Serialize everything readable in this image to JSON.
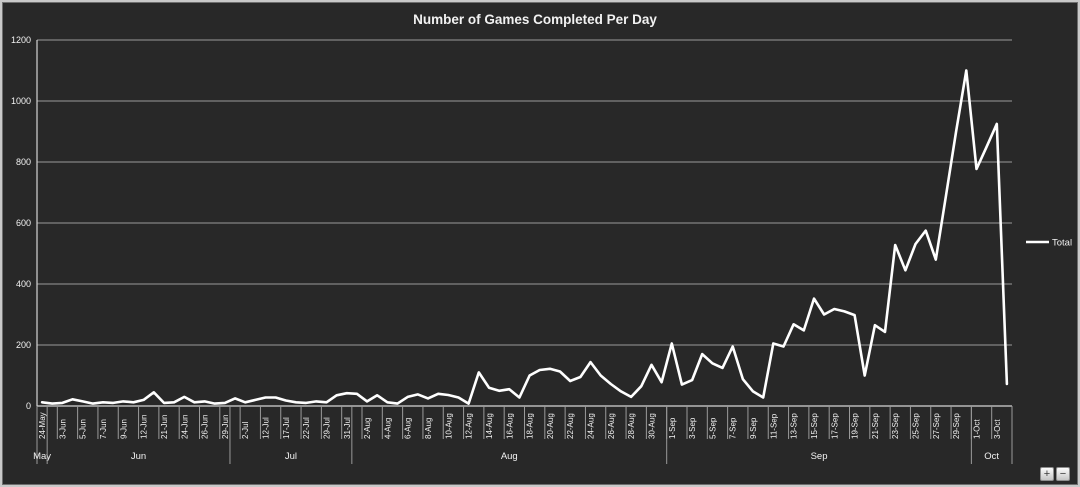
{
  "window": {
    "background_color": "#282828",
    "frame_border_color": "#c9c9c9"
  },
  "title": "Number of Games Completed Per Day",
  "legend": {
    "label": "Total",
    "marker": "white-line"
  },
  "controls": {
    "zoom_in_label": "+",
    "zoom_out_label": "−"
  },
  "colors": {
    "background": "#282828",
    "gridline": "#9a9a9a",
    "axis": "#d4d4d4",
    "series_line": "#ffffff",
    "text": "#f2f2f2"
  },
  "chart_data": {
    "type": "line",
    "title": "Number of Games Completed Per Day",
    "xlabel": "",
    "ylabel": "",
    "ylim": [
      0,
      1200
    ],
    "y_ticks": [
      0,
      200,
      400,
      600,
      800,
      1000,
      1200
    ],
    "grid": "horizontal",
    "legend_position": "right",
    "x_tick_labels": [
      "24-May",
      "3-Jun",
      "5-Jun",
      "7-Jun",
      "9-Jun",
      "12-Jun",
      "21-Jun",
      "24-Jun",
      "26-Jun",
      "29-Jun",
      "2-Jul",
      "12-Jul",
      "17-Jul",
      "22-Jul",
      "29-Jul",
      "31-Jul",
      "2-Aug",
      "4-Aug",
      "6-Aug",
      "8-Aug",
      "10-Aug",
      "12-Aug",
      "14-Aug",
      "16-Aug",
      "18-Aug",
      "20-Aug",
      "22-Aug",
      "24-Aug",
      "26-Aug",
      "28-Aug",
      "30-Aug",
      "1-Sep",
      "3-Sep",
      "5-Sep",
      "7-Sep",
      "9-Sep",
      "11-Sep",
      "13-Sep",
      "15-Sep",
      "17-Sep",
      "19-Sep",
      "21-Sep",
      "23-Sep",
      "25-Sep",
      "27-Sep",
      "29-Sep",
      "1-Oct",
      "3-Oct"
    ],
    "label_interval": 2,
    "month_groups": [
      {
        "label": "May",
        "start": 0,
        "end": 1
      },
      {
        "label": "Jun",
        "start": 1,
        "end": 19
      },
      {
        "label": "Jul",
        "start": 19,
        "end": 31
      },
      {
        "label": "Aug",
        "start": 31,
        "end": 62
      },
      {
        "label": "Sep",
        "start": 62,
        "end": 92
      },
      {
        "label": "Oct",
        "start": 92,
        "end": 96
      }
    ],
    "series": [
      {
        "name": "Total",
        "values": [
          12,
          8,
          10,
          22,
          15,
          8,
          12,
          10,
          15,
          12,
          20,
          45,
          10,
          12,
          30,
          12,
          15,
          8,
          10,
          25,
          12,
          20,
          28,
          28,
          18,
          12,
          10,
          15,
          12,
          35,
          42,
          40,
          15,
          35,
          12,
          8,
          30,
          38,
          25,
          40,
          36,
          28,
          8,
          110,
          60,
          50,
          55,
          28,
          100,
          118,
          122,
          113,
          82,
          95,
          144,
          100,
          72,
          48,
          30,
          65,
          135,
          78,
          205,
          70,
          85,
          170,
          140,
          125,
          195,
          88,
          48,
          28,
          205,
          195,
          268,
          248,
          352,
          300,
          318,
          310,
          298,
          100,
          265,
          243,
          528,
          445,
          531,
          575,
          480,
          690,
          900,
          1100,
          777,
          850,
          925,
          72
        ]
      }
    ]
  }
}
